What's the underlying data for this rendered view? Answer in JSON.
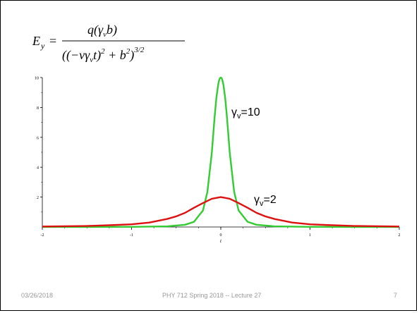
{
  "slide": {
    "footer": {
      "date": "03/26/2018",
      "title": "PHY 712  Spring 2018 -- Lecture 27",
      "page": "7"
    },
    "formula": {
      "lhs_symbol": "E",
      "lhs_subscript": "y",
      "equals": "=",
      "numerator": "q(γvb)",
      "denominator": "((−vγvt)² + b²)^(3/2)"
    }
  },
  "chart_data": {
    "type": "line",
    "title": "",
    "xlabel": "t",
    "ylabel": "",
    "xlim": [
      -2,
      2
    ],
    "ylim": [
      0,
      10
    ],
    "x_ticks": [
      -2,
      -1,
      0,
      1,
      2
    ],
    "y_ticks": [
      2,
      4,
      6,
      8,
      10
    ],
    "grid": false,
    "series": [
      {
        "name": "γv=10",
        "label_text": "γ",
        "label_sub": "v",
        "label_value": "=10",
        "color": "#33cc33",
        "x": [
          -2,
          -1.5,
          -1,
          -0.6,
          -0.4,
          -0.3,
          -0.2,
          -0.15,
          -0.1,
          -0.07,
          -0.05,
          -0.03,
          -0.02,
          -0.01,
          0,
          0.01,
          0.02,
          0.03,
          0.05,
          0.07,
          0.1,
          0.15,
          0.2,
          0.3,
          0.4,
          0.6,
          1,
          1.5,
          2
        ],
        "y": [
          0.0012,
          0.003,
          0.01,
          0.045,
          0.15,
          0.35,
          1.1,
          2.35,
          5.0,
          7.3,
          8.6,
          9.5,
          9.78,
          9.96,
          10,
          9.96,
          9.78,
          9.5,
          8.6,
          7.3,
          5.0,
          2.35,
          1.1,
          0.35,
          0.15,
          0.045,
          0.01,
          0.003,
          0.0012
        ]
      },
      {
        "name": "γv=2",
        "label_text": "γ",
        "label_sub": "v",
        "label_value": "=2",
        "color": "#dd1111",
        "x": [
          -2,
          -1.5,
          -1.2,
          -1,
          -0.8,
          -0.6,
          -0.5,
          -0.4,
          -0.3,
          -0.2,
          -0.1,
          0,
          0.1,
          0.2,
          0.3,
          0.4,
          0.5,
          0.6,
          0.8,
          1,
          1.2,
          1.5,
          2
        ],
        "y": [
          0.03,
          0.07,
          0.13,
          0.18,
          0.3,
          0.54,
          0.71,
          0.95,
          1.29,
          1.6,
          1.89,
          2.0,
          1.89,
          1.6,
          1.29,
          0.95,
          0.71,
          0.54,
          0.3,
          0.18,
          0.13,
          0.07,
          0.03
        ]
      }
    ]
  }
}
